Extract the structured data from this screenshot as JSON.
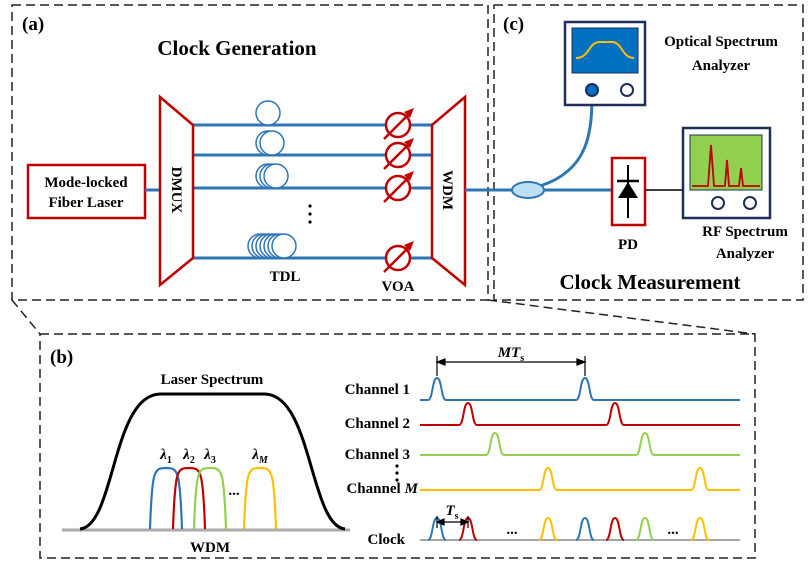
{
  "panel_a": {
    "label": "(a)",
    "title": "Clock Generation",
    "laser": [
      "Mode-locked",
      "Fiber Laser"
    ],
    "dmux": "DMUX",
    "tdl": "TDL",
    "voa": "VOA",
    "wdm": "WDM"
  },
  "panel_c": {
    "label": "(c)",
    "title": "Clock Measurement",
    "osa": [
      "Optical Spectrum",
      "Analyzer"
    ],
    "pd": "PD",
    "rfsa": [
      "RF Spectrum",
      "Analyzer"
    ]
  },
  "panel_b": {
    "label": "(b)",
    "spectrum_title": "Laser Spectrum",
    "wavelengths": [
      {
        "symbol": "λ",
        "sub": "1"
      },
      {
        "symbol": "λ",
        "sub": "2"
      },
      {
        "symbol": "λ",
        "sub": "3"
      },
      {
        "symbol": "λ",
        "sub": "M"
      }
    ],
    "ellipsis": "...",
    "wdm": "WDM",
    "period": {
      "symbol": "MT",
      "sub": "s"
    },
    "channels": [
      "Channel 1",
      "Channel 2",
      "Channel 3",
      {
        "name": "Channel",
        "index": "M"
      }
    ],
    "clock": "Clock",
    "slot": {
      "symbol": "T",
      "sub": "s"
    },
    "clock_ellipsis": [
      "...",
      "..."
    ]
  }
}
